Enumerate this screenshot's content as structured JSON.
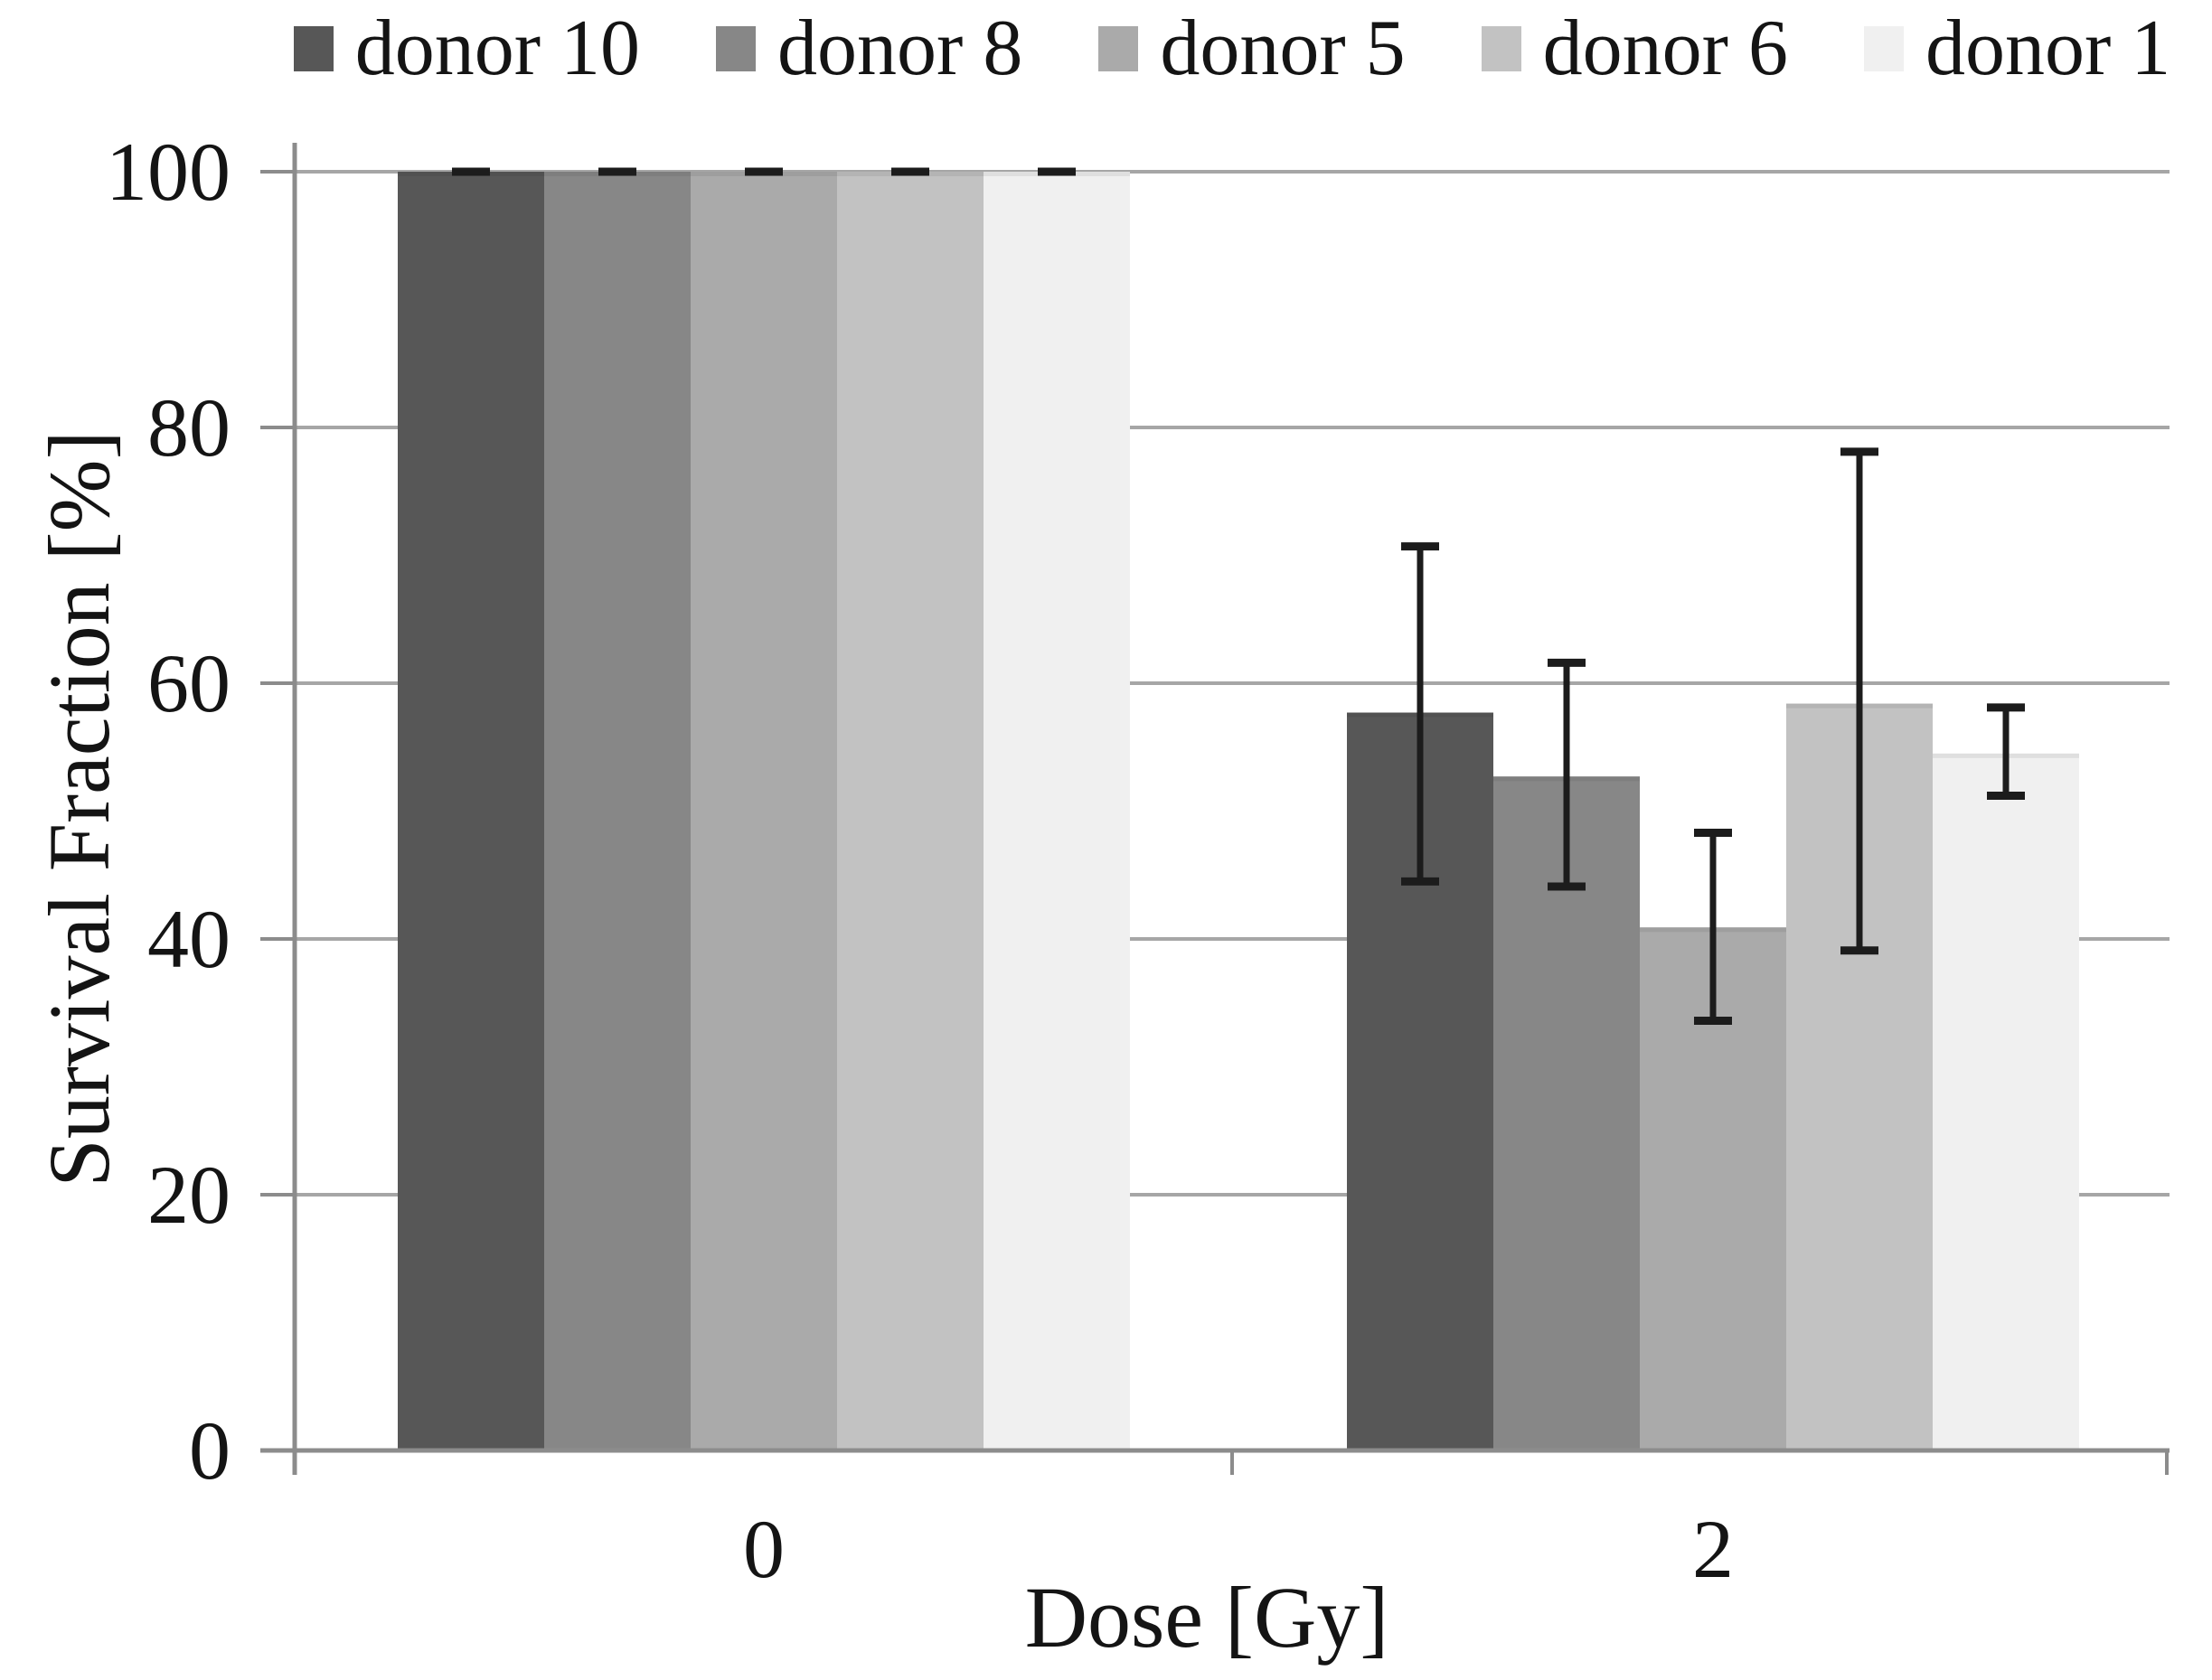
{
  "chart_data": {
    "type": "bar",
    "title": "",
    "xlabel": "Dose [Gy]",
    "ylabel": "Survival Fraction [%]",
    "categories": [
      "0",
      "2"
    ],
    "y_axis": {
      "min": 0,
      "max": 100,
      "tick_step": 20,
      "tick_labels": [
        "0",
        "20",
        "40",
        "60",
        "80",
        "100"
      ]
    },
    "grid": true,
    "legend_position": "top",
    "series": [
      {
        "name": "donor 10",
        "color": "#575757",
        "values": [
          100,
          57.7
        ],
        "error_low": [
          100,
          44.5
        ],
        "error_high": [
          100,
          70.7
        ]
      },
      {
        "name": "donor 8",
        "color": "#878787",
        "values": [
          100,
          52.7
        ],
        "error_low": [
          100,
          44.1
        ],
        "error_high": [
          100,
          61.6
        ]
      },
      {
        "name": "donor 5",
        "color": "#aaaaaa",
        "values": [
          100,
          40.9
        ],
        "error_low": [
          100,
          33.6
        ],
        "error_high": [
          100,
          48.3
        ]
      },
      {
        "name": "donor 6",
        "color": "#c2c2c2",
        "values": [
          100,
          58.4
        ],
        "error_low": [
          100,
          39.1
        ],
        "error_high": [
          100,
          78.1
        ]
      },
      {
        "name": "donor 1",
        "color": "#f0f0f0",
        "values": [
          100,
          54.5
        ],
        "error_low": [
          100,
          51.2
        ],
        "error_high": [
          100,
          58.1
        ]
      }
    ],
    "colors": {
      "grid": "#a6a6a6",
      "axis": "#8c8c8c",
      "error_bar": "#1c1c1c",
      "text": "#141414",
      "background": "#ffffff"
    }
  }
}
